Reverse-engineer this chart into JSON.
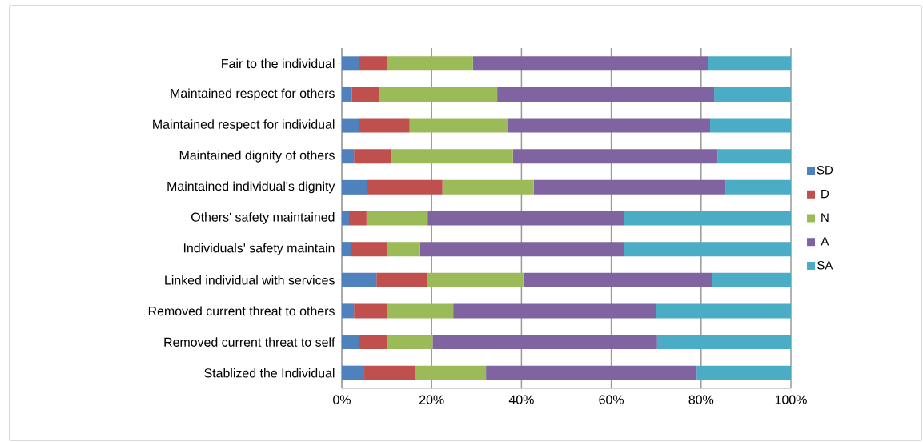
{
  "chart_data": {
    "type": "bar",
    "orientation": "horizontal",
    "stacked": true,
    "categories": [
      "Fair to the individual",
      "Maintained respect for others",
      "Maintained respect for individual",
      "Maintained dignity of others",
      "Maintained individual's dignity",
      "Others' safety maintained",
      "Individuals' safety maintain",
      "Linked individual with services",
      "Removed current threat to others",
      "Removed current threat to self",
      "Stablized the Individual"
    ],
    "series": [
      {
        "name": "SD",
        "color": "#4f81bd",
        "values": [
          3.8,
          2.2,
          3.8,
          2.7,
          5.6,
          1.6,
          2.1,
          7.7,
          2.7,
          3.8,
          5.0
        ]
      },
      {
        "name": "D",
        "color": "#c0504d",
        "values": [
          6.2,
          6.2,
          11.3,
          8.4,
          16.8,
          3.9,
          7.9,
          11.3,
          7.4,
          6.2,
          11.3
        ]
      },
      {
        "name": "N",
        "color": "#9bbb59",
        "values": [
          19.2,
          26.2,
          21.9,
          27.0,
          20.3,
          13.6,
          7.4,
          21.4,
          14.7,
          10.2,
          15.8
        ]
      },
      {
        "name": "A",
        "color": "#8064a2",
        "values": [
          52.3,
          48.3,
          45.0,
          45.6,
          42.7,
          43.7,
          45.4,
          42.1,
          45.2,
          50.0,
          46.9
        ]
      },
      {
        "name": "SA",
        "color": "#4bacc6",
        "values": [
          18.5,
          17.1,
          18.0,
          16.3,
          14.6,
          37.2,
          37.2,
          17.5,
          30.0,
          29.8,
          21.0
        ]
      }
    ],
    "xlim": [
      0,
      100
    ],
    "xticks": [
      {
        "value": 0,
        "label": "0%"
      },
      {
        "value": 20,
        "label": "20%"
      },
      {
        "value": 40,
        "label": "40%"
      },
      {
        "value": 60,
        "label": "60%"
      },
      {
        "value": 80,
        "label": "80%"
      },
      {
        "value": 100,
        "label": "100%"
      }
    ],
    "grid": "x",
    "legend": "right"
  }
}
